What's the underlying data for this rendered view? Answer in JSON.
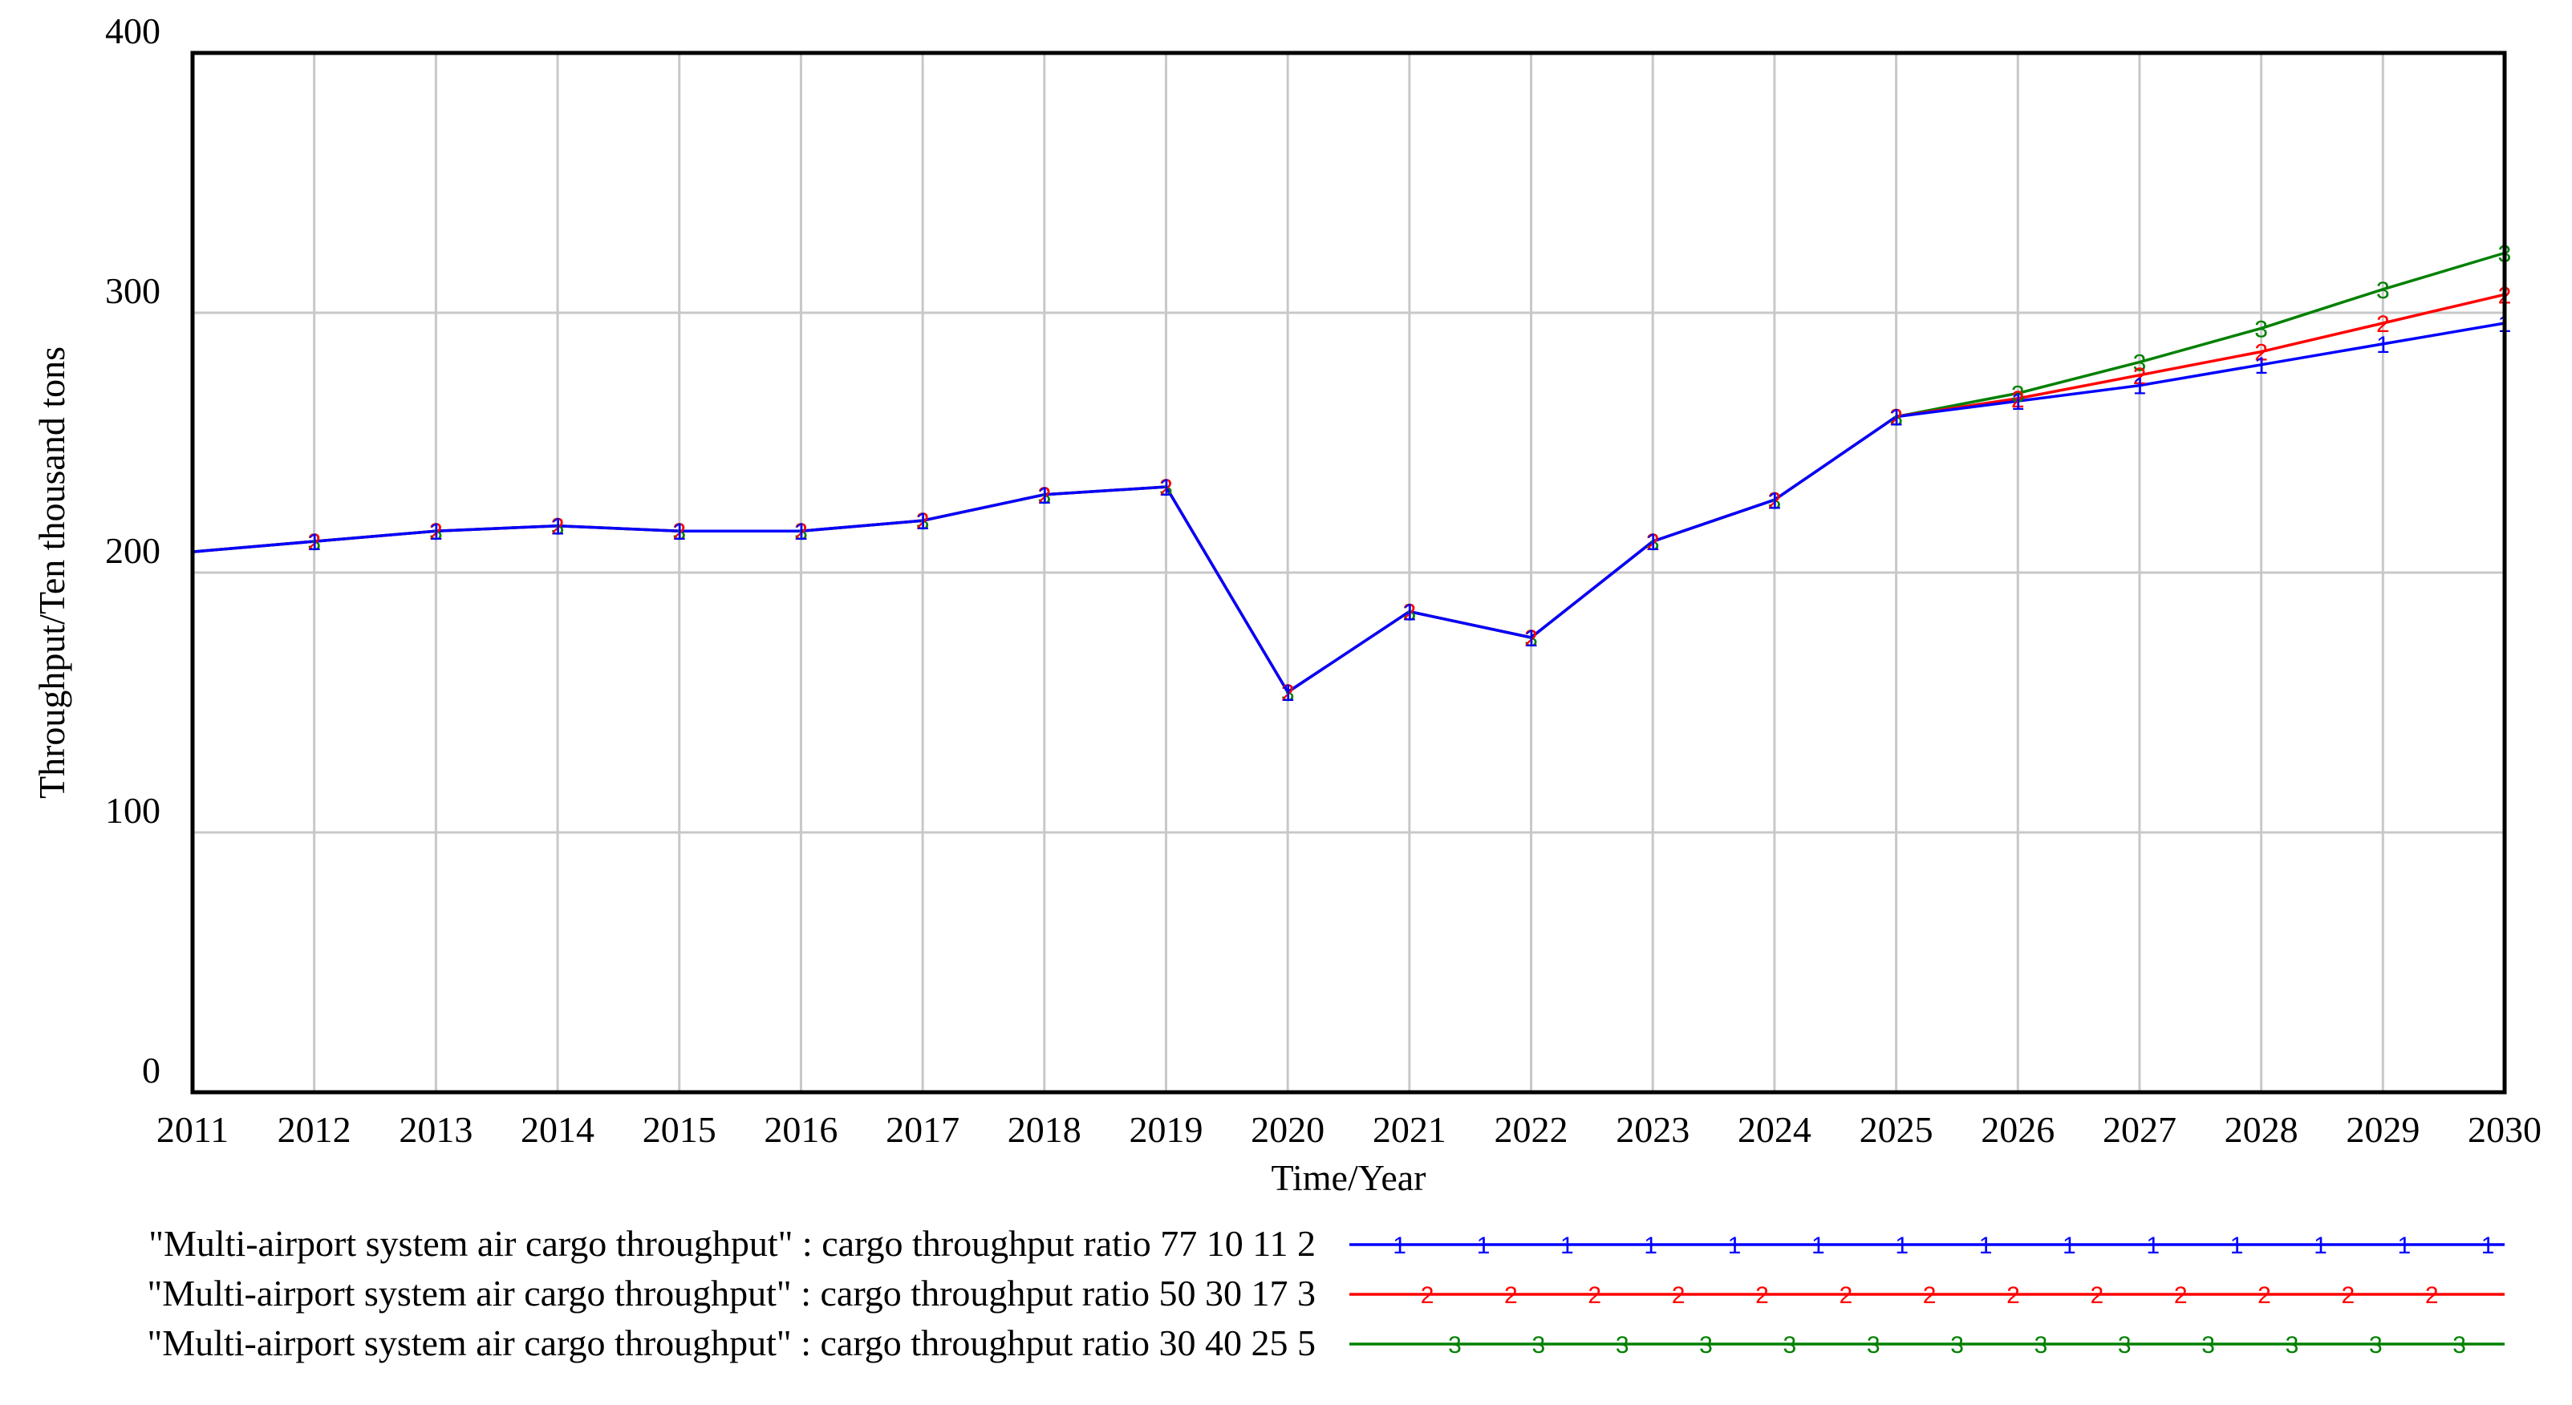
{
  "chart_data": {
    "type": "line",
    "xlabel": "Time/Year",
    "ylabel": "Throughput/Ten thousand tons",
    "xlim": [
      2011,
      2030
    ],
    "ylim": [
      0,
      400
    ],
    "x_ticks": [
      "2011",
      "2012",
      "2013",
      "2014",
      "2015",
      "2016",
      "2017",
      "2018",
      "2019",
      "2020",
      "2021",
      "2022",
      "2023",
      "2024",
      "2025",
      "2026",
      "2027",
      "2028",
      "2029",
      "2030"
    ],
    "y_ticks": [
      "0",
      "100",
      "200",
      "300",
      "400"
    ],
    "grid": true,
    "legend_position": "bottom",
    "x": [
      2011,
      2012,
      2013,
      2014,
      2015,
      2016,
      2017,
      2018,
      2019,
      2020,
      2021,
      2022,
      2023,
      2024,
      2025,
      2026,
      2027,
      2028,
      2029,
      2030
    ],
    "series": [
      {
        "name": "\"Multi-airport system air cargo throughput\" : cargo throughput ratio 77 10 11 2",
        "marker": "1",
        "color": "#0000ff",
        "values": [
          208,
          212,
          216,
          218,
          216,
          216,
          220,
          230,
          233,
          154,
          185,
          175,
          212,
          228,
          260,
          266,
          272,
          280,
          288,
          296
        ]
      },
      {
        "name": "\"Multi-airport system air cargo throughput\" : cargo throughput ratio 50 30 17 3",
        "marker": "2",
        "color": "#ff0000",
        "values": [
          208,
          212,
          216,
          218,
          216,
          216,
          220,
          230,
          233,
          154,
          185,
          175,
          212,
          228,
          260,
          267,
          276,
          285,
          296,
          307
        ]
      },
      {
        "name": "\"Multi-airport system air cargo throughput\" : cargo throughput ratio 30 40 25 5",
        "marker": "3",
        "color": "#008000",
        "values": [
          208,
          212,
          216,
          218,
          216,
          216,
          220,
          230,
          233,
          154,
          185,
          175,
          212,
          228,
          260,
          269,
          281,
          294,
          309,
          323
        ]
      }
    ]
  }
}
